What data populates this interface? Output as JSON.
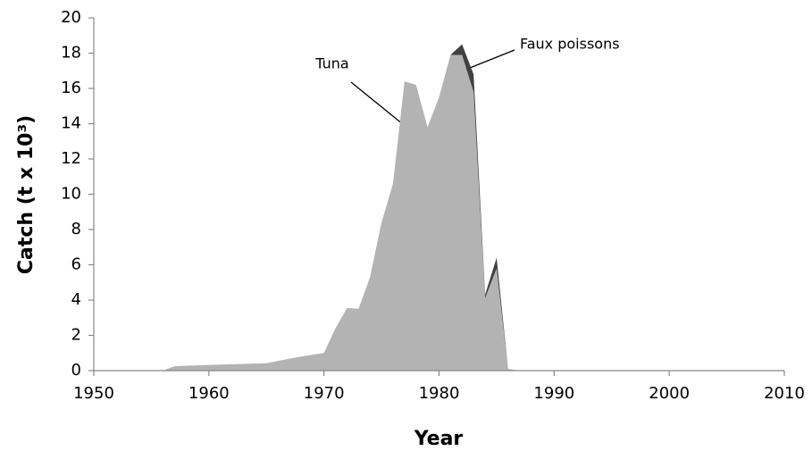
{
  "chart_data": {
    "type": "area",
    "stacked": true,
    "ylabel": "Catch (t x 10³)",
    "xlabel": "Year",
    "x": [
      1950,
      1951,
      1952,
      1953,
      1954,
      1955,
      1956,
      1957,
      1958,
      1959,
      1960,
      1961,
      1962,
      1963,
      1964,
      1965,
      1966,
      1967,
      1968,
      1969,
      1970,
      1971,
      1972,
      1973,
      1974,
      1975,
      1976,
      1977,
      1978,
      1979,
      1980,
      1981,
      1982,
      1983,
      1984,
      1985,
      1986,
      1987,
      1988,
      1989,
      1990,
      1991,
      1992,
      1993,
      1994,
      1995,
      1996,
      1997,
      1998,
      1999,
      2000,
      2001,
      2002,
      2003,
      2004,
      2005,
      2006,
      2007,
      2008,
      2009,
      2010
    ],
    "series": [
      {
        "name": "Tuna",
        "color": "#b3b3b3",
        "values": [
          0,
          0,
          0,
          0,
          0,
          0,
          0,
          0.25,
          0.28,
          0.3,
          0.32,
          0.34,
          0.36,
          0.38,
          0.4,
          0.42,
          0.55,
          0.68,
          0.8,
          0.9,
          1.0,
          2.4,
          3.55,
          3.5,
          5.3,
          8.4,
          10.6,
          16.4,
          16.2,
          13.8,
          15.5,
          17.9,
          17.9,
          15.8,
          4.1,
          5.8,
          0.1,
          0,
          0,
          0,
          0,
          0,
          0,
          0,
          0,
          0,
          0,
          0,
          0,
          0,
          0,
          0,
          0,
          0,
          0,
          0,
          0,
          0,
          0,
          0,
          0
        ]
      },
      {
        "name": "Faux poissons",
        "color": "#404040",
        "values": [
          0,
          0,
          0,
          0,
          0,
          0,
          0,
          0,
          0,
          0,
          0,
          0,
          0,
          0,
          0,
          0,
          0,
          0,
          0,
          0,
          0,
          0,
          0,
          0,
          0,
          0,
          0,
          0,
          0,
          0,
          0,
          0,
          0.6,
          1.0,
          0.2,
          0.6,
          0,
          0,
          0,
          0,
          0,
          0,
          0,
          0,
          0,
          0,
          0,
          0,
          0,
          0,
          0,
          0,
          0,
          0,
          0,
          0,
          0,
          0,
          0,
          0,
          0
        ]
      }
    ],
    "annotations": [
      {
        "text": "Tuna"
      },
      {
        "text": "Faux poissons"
      }
    ],
    "xlim": [
      1950,
      2010
    ],
    "xticks": [
      1950,
      1960,
      1970,
      1980,
      1990,
      2000,
      2010
    ],
    "ylim": [
      0,
      20
    ],
    "yticks": [
      0,
      2,
      4,
      6,
      8,
      10,
      12,
      14,
      16,
      18,
      20
    ],
    "grid": false
  }
}
